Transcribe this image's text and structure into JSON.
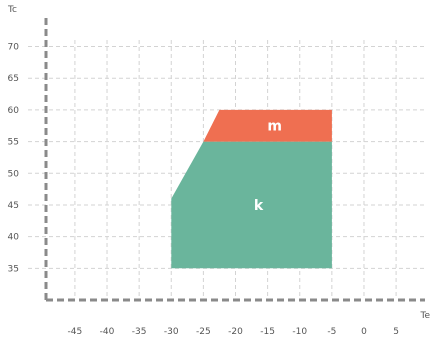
{
  "chart_data": {
    "type": "area",
    "xlabel": "Te",
    "ylabel": "Tc",
    "x_ticks": [
      -45,
      -40,
      -35,
      -30,
      -25,
      -20,
      -15,
      -10,
      -5,
      0,
      5
    ],
    "y_ticks": [
      35,
      40,
      45,
      50,
      55,
      60,
      65,
      70
    ],
    "xlim": [
      -49.5,
      9.5
    ],
    "ylim": [
      30,
      74.5
    ],
    "grid": true,
    "regions": [
      {
        "name": "k",
        "color": "#6ab59c",
        "points": [
          [
            -30,
            35
          ],
          [
            -30,
            46
          ],
          [
            -25,
            55
          ],
          [
            -5,
            55
          ],
          [
            -5,
            35
          ]
        ]
      },
      {
        "name": "m",
        "color": "#ef6f51",
        "points": [
          [
            -25,
            55
          ],
          [
            -22.5,
            60
          ],
          [
            -5,
            60
          ],
          [
            -5,
            55
          ]
        ]
      }
    ]
  }
}
